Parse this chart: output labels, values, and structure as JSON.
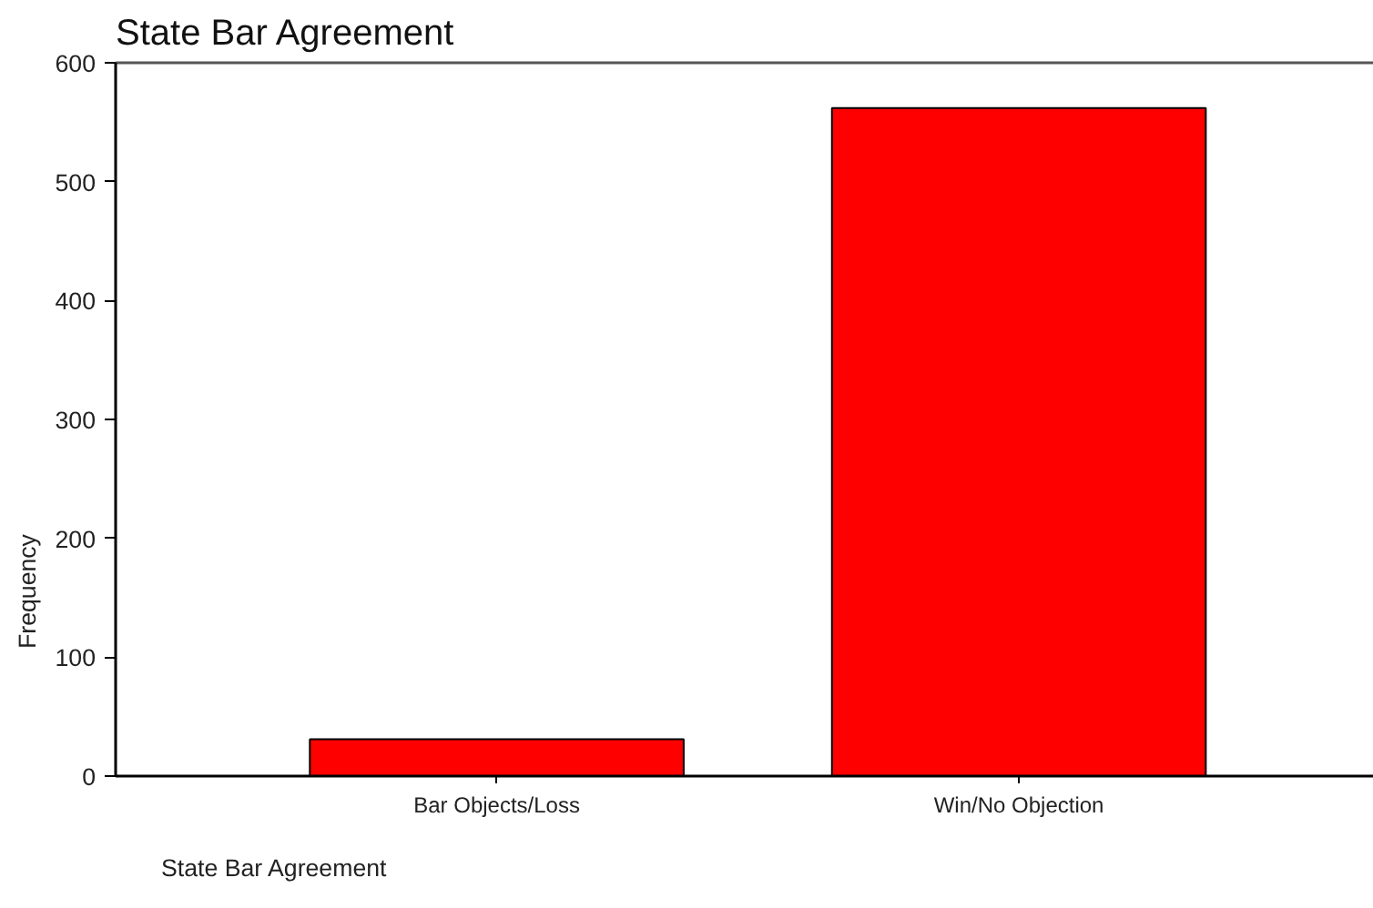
{
  "chart_data": {
    "type": "bar",
    "title": "State Bar Agreement",
    "xlabel": "State Bar Agreement",
    "ylabel": "Frequency",
    "categories": [
      "Bar Objects/Loss",
      "Win/No Objection"
    ],
    "values": [
      31,
      562
    ],
    "color": "#ff0000",
    "ylim": [
      0,
      600
    ],
    "yticks": [
      0,
      100,
      200,
      300,
      400,
      500,
      600
    ],
    "grid": false
  }
}
